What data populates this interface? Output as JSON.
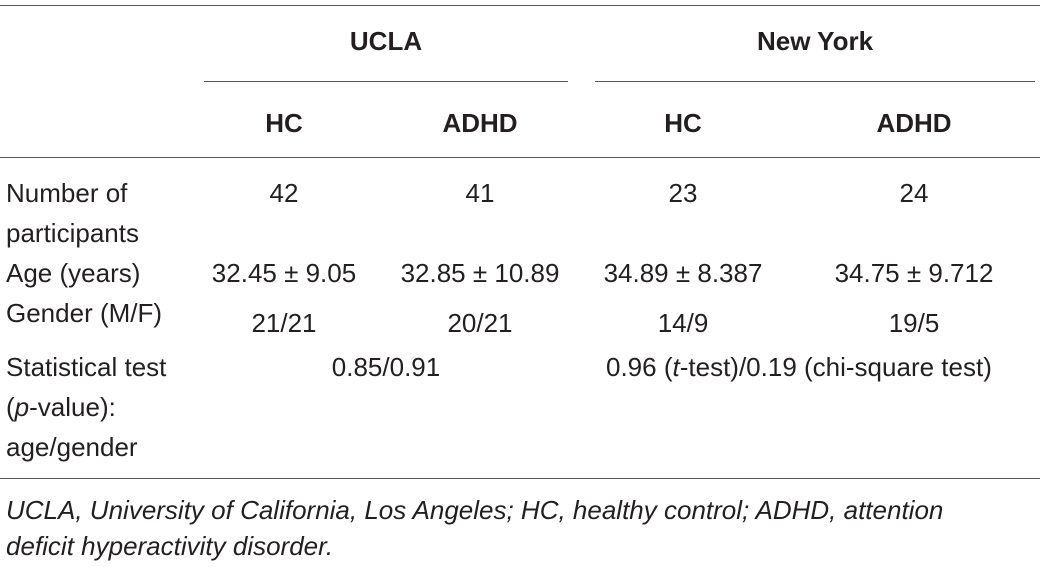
{
  "table": {
    "sites": [
      "UCLA",
      "New York"
    ],
    "groups": [
      "HC",
      "ADHD",
      "HC",
      "ADHD"
    ],
    "rows": [
      {
        "label_lines": [
          "Number of",
          "participants"
        ],
        "cells": [
          "42",
          "41",
          "23",
          "24"
        ]
      },
      {
        "label_lines": [
          "Age (years)"
        ],
        "cells": [
          "32.45 ± 9.05",
          "32.85 ± 10.89",
          "34.89 ± 8.387",
          "34.75 ± 9.712"
        ]
      },
      {
        "label_lines": [
          "Gender (M/F)"
        ],
        "cells": [
          "21/21",
          "20/21",
          "14/9",
          "19/5"
        ]
      }
    ],
    "stat_row": {
      "label_lines": [
        "Statistical test",
        "(",
        "p",
        "-value):",
        "age/gender"
      ],
      "ucla": "0.85/0.91",
      "ny_pre": "0.96 (",
      "ny_t": "t",
      "ny_post": "-test)/0.19 (chi-square test)"
    }
  },
  "footnote": {
    "line1": "UCLA, University of California, Los Angeles; HC, healthy control; ADHD, attention",
    "line2": "deficit hyperactivity disorder."
  }
}
